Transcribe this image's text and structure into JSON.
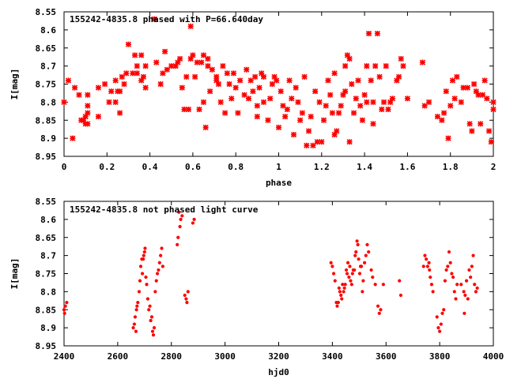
{
  "chart_data": [
    {
      "type": "scatter",
      "title": "155242-4835.8 phased with P=66.640day",
      "xlabel": "phase",
      "ylabel": "I[mag]",
      "xlim": [
        0,
        2
      ],
      "ylim": [
        8.95,
        8.55
      ],
      "y_inverted": true,
      "xticks": [
        "0",
        "0.2",
        "0.4",
        "0.6",
        "0.8",
        "1",
        "1.2",
        "1.4",
        "1.6",
        "1.8",
        "2"
      ],
      "yticks": [
        "8.55",
        "8.6",
        "8.65",
        "8.7",
        "8.75",
        "8.8",
        "8.85",
        "8.9",
        "8.95"
      ],
      "grid": false,
      "color": "#ff0000",
      "points": [
        [
          0.0,
          8.8
        ],
        [
          0.02,
          8.74
        ],
        [
          0.04,
          8.9
        ],
        [
          0.05,
          8.76
        ],
        [
          0.07,
          8.78
        ],
        [
          0.08,
          8.85
        ],
        [
          0.09,
          8.85
        ],
        [
          0.1,
          8.84
        ],
        [
          0.1,
          8.86
        ],
        [
          0.11,
          8.81
        ],
        [
          0.11,
          8.83
        ],
        [
          0.11,
          8.86
        ],
        [
          0.11,
          8.78
        ],
        [
          0.16,
          8.76
        ],
        [
          0.16,
          8.84
        ],
        [
          0.19,
          8.75
        ],
        [
          0.21,
          8.8
        ],
        [
          0.22,
          8.77
        ],
        [
          0.24,
          8.8
        ],
        [
          0.24,
          8.74
        ],
        [
          0.25,
          8.77
        ],
        [
          0.26,
          8.83
        ],
        [
          0.26,
          8.77
        ],
        [
          0.27,
          8.73
        ],
        [
          0.28,
          8.75
        ],
        [
          0.29,
          8.72
        ],
        [
          0.3,
          8.64
        ],
        [
          0.32,
          8.72
        ],
        [
          0.33,
          8.67
        ],
        [
          0.34,
          8.7
        ],
        [
          0.34,
          8.72
        ],
        [
          0.36,
          8.67
        ],
        [
          0.36,
          8.74
        ],
        [
          0.37,
          8.73
        ],
        [
          0.38,
          8.76
        ],
        [
          0.38,
          8.7
        ],
        [
          0.42,
          8.57
        ],
        [
          0.43,
          8.69
        ],
        [
          0.45,
          8.75
        ],
        [
          0.46,
          8.72
        ],
        [
          0.47,
          8.66
        ],
        [
          0.48,
          8.71
        ],
        [
          0.5,
          8.7
        ],
        [
          0.52,
          8.7
        ],
        [
          0.53,
          8.69
        ],
        [
          0.54,
          8.68
        ],
        [
          0.55,
          8.76
        ],
        [
          0.56,
          8.82
        ],
        [
          0.57,
          8.73
        ],
        [
          0.58,
          8.82
        ],
        [
          0.59,
          8.68
        ],
        [
          0.59,
          8.59
        ],
        [
          0.6,
          8.67
        ],
        [
          0.61,
          8.73
        ],
        [
          0.62,
          8.69
        ],
        [
          0.63,
          8.82
        ],
        [
          0.64,
          8.69
        ],
        [
          0.65,
          8.67
        ],
        [
          0.65,
          8.8
        ],
        [
          0.66,
          8.87
        ],
        [
          0.67,
          8.68
        ],
        [
          0.67,
          8.7
        ],
        [
          0.68,
          8.77
        ],
        [
          0.69,
          8.71
        ],
        [
          0.71,
          8.73
        ],
        [
          0.71,
          8.74
        ],
        [
          0.72,
          8.75
        ],
        [
          0.73,
          8.8
        ],
        [
          0.74,
          8.7
        ],
        [
          0.75,
          8.83
        ],
        [
          0.76,
          8.72
        ],
        [
          0.77,
          8.75
        ],
        [
          0.78,
          8.79
        ],
        [
          0.79,
          8.72
        ],
        [
          0.8,
          8.76
        ],
        [
          0.81,
          8.83
        ],
        [
          0.82,
          8.74
        ],
        [
          0.84,
          8.78
        ],
        [
          0.85,
          8.71
        ],
        [
          0.86,
          8.79
        ],
        [
          0.87,
          8.74
        ],
        [
          0.88,
          8.77
        ],
        [
          0.89,
          8.73
        ],
        [
          0.9,
          8.84
        ],
        [
          0.9,
          8.81
        ],
        [
          0.91,
          8.76
        ],
        [
          0.92,
          8.72
        ],
        [
          0.93,
          8.73
        ],
        [
          0.93,
          8.8
        ],
        [
          0.95,
          8.85
        ],
        [
          0.96,
          8.79
        ],
        [
          0.97,
          8.75
        ],
        [
          0.98,
          8.73
        ],
        [
          0.99,
          8.74
        ],
        [
          1.0,
          8.87
        ],
        [
          1.01,
          8.77
        ],
        [
          1.02,
          8.81
        ],
        [
          1.03,
          8.84
        ],
        [
          1.04,
          8.82
        ],
        [
          1.05,
          8.74
        ],
        [
          1.06,
          8.79
        ],
        [
          1.07,
          8.89
        ],
        [
          1.08,
          8.76
        ],
        [
          1.09,
          8.8
        ],
        [
          1.1,
          8.85
        ],
        [
          1.11,
          8.83
        ],
        [
          1.12,
          8.73
        ],
        [
          1.13,
          8.92
        ],
        [
          1.14,
          8.88
        ],
        [
          1.15,
          8.84
        ],
        [
          1.16,
          8.92
        ],
        [
          1.17,
          8.77
        ],
        [
          1.18,
          8.91
        ],
        [
          1.19,
          8.8
        ],
        [
          1.2,
          8.91
        ],
        [
          1.21,
          8.85
        ],
        [
          1.22,
          8.81
        ],
        [
          1.23,
          8.74
        ],
        [
          1.24,
          8.78
        ],
        [
          1.25,
          8.83
        ],
        [
          1.26,
          8.89
        ],
        [
          1.26,
          8.72
        ],
        [
          1.27,
          8.88
        ],
        [
          1.28,
          8.83
        ],
        [
          1.29,
          8.81
        ],
        [
          1.3,
          8.78
        ],
        [
          1.31,
          8.77
        ],
        [
          1.31,
          8.7
        ],
        [
          1.32,
          8.67
        ],
        [
          1.33,
          8.68
        ],
        [
          1.33,
          8.91
        ],
        [
          1.34,
          8.75
        ],
        [
          1.35,
          8.83
        ],
        [
          1.36,
          8.79
        ],
        [
          1.37,
          8.74
        ],
        [
          1.38,
          8.81
        ],
        [
          1.39,
          8.85
        ],
        [
          1.4,
          8.78
        ],
        [
          1.41,
          8.7
        ],
        [
          1.41,
          8.8
        ],
        [
          1.42,
          8.61
        ],
        [
          1.43,
          8.74
        ],
        [
          1.44,
          8.8
        ],
        [
          1.44,
          8.86
        ],
        [
          1.45,
          8.7
        ],
        [
          1.46,
          8.61
        ],
        [
          1.47,
          8.73
        ],
        [
          1.48,
          8.82
        ],
        [
          1.49,
          8.8
        ],
        [
          1.5,
          8.7
        ],
        [
          1.51,
          8.82
        ],
        [
          1.52,
          8.8
        ],
        [
          1.53,
          8.79
        ],
        [
          1.55,
          8.74
        ],
        [
          1.56,
          8.73
        ],
        [
          1.57,
          8.68
        ],
        [
          1.58,
          8.7
        ],
        [
          1.6,
          8.79
        ],
        [
          1.67,
          8.69
        ],
        [
          1.68,
          8.81
        ],
        [
          1.7,
          8.8
        ],
        [
          1.74,
          8.84
        ],
        [
          1.76,
          8.85
        ],
        [
          1.77,
          8.83
        ],
        [
          1.78,
          8.77
        ],
        [
          1.79,
          8.9
        ],
        [
          1.8,
          8.81
        ],
        [
          1.81,
          8.74
        ],
        [
          1.82,
          8.79
        ],
        [
          1.83,
          8.73
        ],
        [
          1.85,
          8.8
        ],
        [
          1.86,
          8.76
        ],
        [
          1.88,
          8.76
        ],
        [
          1.89,
          8.86
        ],
        [
          1.9,
          8.88
        ],
        [
          1.91,
          8.75
        ],
        [
          1.92,
          8.77
        ],
        [
          1.93,
          8.78
        ],
        [
          1.94,
          8.86
        ],
        [
          1.95,
          8.78
        ],
        [
          1.96,
          8.74
        ],
        [
          1.97,
          8.79
        ],
        [
          1.98,
          8.88
        ],
        [
          1.99,
          8.91
        ],
        [
          2.0,
          8.82
        ],
        [
          2.0,
          8.8
        ]
      ]
    },
    {
      "type": "scatter",
      "title": "155242-4835.8 not phased light curve",
      "xlabel": "hjd0",
      "ylabel": "I[mag]",
      "xlim": [
        2400,
        4000
      ],
      "ylim": [
        8.95,
        8.55
      ],
      "y_inverted": true,
      "xticks": [
        "2400",
        "2600",
        "2800",
        "3000",
        "3200",
        "3400",
        "3600",
        "3800",
        "4000"
      ],
      "yticks": [
        "8.55",
        "8.6",
        "8.65",
        "8.7",
        "8.75",
        "8.8",
        "8.85",
        "8.9",
        "8.95"
      ],
      "grid": false,
      "color": "#ff0000",
      "points": [
        [
          2400,
          8.85
        ],
        [
          2402,
          8.86
        ],
        [
          2405,
          8.84
        ],
        [
          2410,
          8.83
        ],
        [
          2658,
          8.9
        ],
        [
          2662,
          8.89
        ],
        [
          2665,
          8.87
        ],
        [
          2668,
          8.91
        ],
        [
          2670,
          8.85
        ],
        [
          2672,
          8.84
        ],
        [
          2675,
          8.83
        ],
        [
          2680,
          8.8
        ],
        [
          2683,
          8.77
        ],
        [
          2686,
          8.73
        ],
        [
          2690,
          8.71
        ],
        [
          2692,
          8.75
        ],
        [
          2695,
          8.71
        ],
        [
          2697,
          8.7
        ],
        [
          2700,
          8.69
        ],
        [
          2702,
          8.68
        ],
        [
          2705,
          8.76
        ],
        [
          2708,
          8.78
        ],
        [
          2712,
          8.82
        ],
        [
          2716,
          8.85
        ],
        [
          2720,
          8.84
        ],
        [
          2723,
          8.88
        ],
        [
          2727,
          8.87
        ],
        [
          2730,
          8.91
        ],
        [
          2733,
          8.92
        ],
        [
          2736,
          8.9
        ],
        [
          2740,
          8.8
        ],
        [
          2744,
          8.77
        ],
        [
          2748,
          8.75
        ],
        [
          2752,
          8.74
        ],
        [
          2756,
          8.72
        ],
        [
          2760,
          8.7
        ],
        [
          2764,
          8.68
        ],
        [
          2768,
          8.73
        ],
        [
          2822,
          8.67
        ],
        [
          2825,
          8.65
        ],
        [
          2828,
          8.58
        ],
        [
          2832,
          8.62
        ],
        [
          2835,
          8.6
        ],
        [
          2840,
          8.59
        ],
        [
          2850,
          8.81
        ],
        [
          2855,
          8.82
        ],
        [
          2858,
          8.83
        ],
        [
          2862,
          8.8
        ],
        [
          2880,
          8.61
        ],
        [
          2885,
          8.6
        ],
        [
          3395,
          8.72
        ],
        [
          3400,
          8.73
        ],
        [
          3405,
          8.75
        ],
        [
          3410,
          8.77
        ],
        [
          3415,
          8.83
        ],
        [
          3418,
          8.84
        ],
        [
          3422,
          8.83
        ],
        [
          3425,
          8.79
        ],
        [
          3428,
          8.8
        ],
        [
          3432,
          8.81
        ],
        [
          3435,
          8.82
        ],
        [
          3438,
          8.78
        ],
        [
          3442,
          8.8
        ],
        [
          3445,
          8.79
        ],
        [
          3448,
          8.78
        ],
        [
          3452,
          8.74
        ],
        [
          3455,
          8.75
        ],
        [
          3458,
          8.72
        ],
        [
          3462,
          8.76
        ],
        [
          3465,
          8.73
        ],
        [
          3468,
          8.77
        ],
        [
          3472,
          8.78
        ],
        [
          3475,
          8.75
        ],
        [
          3478,
          8.74
        ],
        [
          3482,
          8.74
        ],
        [
          3485,
          8.7
        ],
        [
          3488,
          8.69
        ],
        [
          3492,
          8.66
        ],
        [
          3495,
          8.67
        ],
        [
          3498,
          8.71
        ],
        [
          3502,
          8.75
        ],
        [
          3505,
          8.73
        ],
        [
          3508,
          8.73
        ],
        [
          3512,
          8.8
        ],
        [
          3515,
          8.77
        ],
        [
          3520,
          8.72
        ],
        [
          3525,
          8.7
        ],
        [
          3530,
          8.67
        ],
        [
          3535,
          8.69
        ],
        [
          3545,
          8.74
        ],
        [
          3550,
          8.76
        ],
        [
          3560,
          8.78
        ],
        [
          3570,
          8.84
        ],
        [
          3575,
          8.86
        ],
        [
          3580,
          8.85
        ],
        [
          3590,
          8.78
        ],
        [
          3650,
          8.77
        ],
        [
          3655,
          8.81
        ],
        [
          3740,
          8.73
        ],
        [
          3745,
          8.7
        ],
        [
          3750,
          8.71
        ],
        [
          3755,
          8.73
        ],
        [
          3760,
          8.72
        ],
        [
          3762,
          8.74
        ],
        [
          3765,
          8.76
        ],
        [
          3770,
          8.78
        ],
        [
          3775,
          8.8
        ],
        [
          3790,
          8.87
        ],
        [
          3795,
          8.9
        ],
        [
          3800,
          8.91
        ],
        [
          3805,
          8.89
        ],
        [
          3810,
          8.86
        ],
        [
          3815,
          8.85
        ],
        [
          3820,
          8.77
        ],
        [
          3825,
          8.74
        ],
        [
          3830,
          8.73
        ],
        [
          3835,
          8.69
        ],
        [
          3840,
          8.72
        ],
        [
          3845,
          8.75
        ],
        [
          3850,
          8.76
        ],
        [
          3855,
          8.8
        ],
        [
          3860,
          8.82
        ],
        [
          3865,
          8.78
        ],
        [
          3880,
          8.78
        ],
        [
          3890,
          8.8
        ],
        [
          3895,
          8.81
        ],
        [
          3900,
          8.77
        ],
        [
          3905,
          8.82
        ],
        [
          3910,
          8.74
        ],
        [
          3915,
          8.76
        ],
        [
          3920,
          8.73
        ],
        [
          3925,
          8.7
        ],
        [
          3930,
          8.78
        ],
        [
          3935,
          8.8
        ],
        [
          3940,
          8.79
        ],
        [
          3892,
          8.86
        ]
      ]
    }
  ]
}
